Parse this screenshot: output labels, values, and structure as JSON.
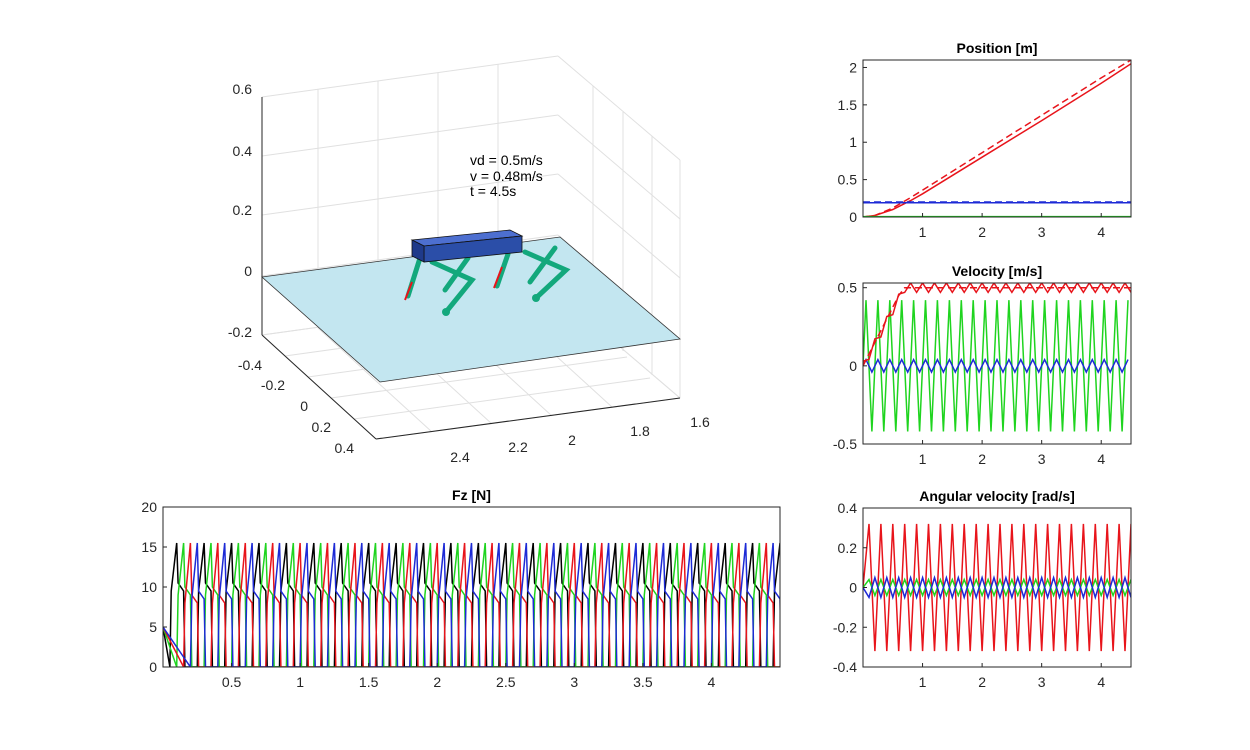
{
  "scene": {
    "z_ticks": [
      "0.6",
      "0.4",
      "0.2",
      "0",
      "-0.2"
    ],
    "y_ticks": [
      "-0.4",
      "-0.2",
      "0",
      "0.2",
      "0.4"
    ],
    "x_ticks": [
      "2.4",
      "2.2",
      "2",
      "1.8",
      "1.6"
    ],
    "annotation": [
      "vd = 0.5m/s",
      "v = 0.48m/s",
      "t = 4.5s"
    ],
    "colors": {
      "ground": "#c3e6f0",
      "body": "#2b4ea8",
      "legs": "#13a87c",
      "force": "#e8141b"
    }
  },
  "chart_data": [
    {
      "id": "position",
      "type": "line",
      "title": "Position [m]",
      "xlim": [
        0,
        4.5
      ],
      "ylim": [
        0,
        2.1
      ],
      "xticks": [
        1,
        2,
        3,
        4
      ],
      "xtick_labels": [
        "1",
        "2",
        "3",
        "4"
      ],
      "yticks": [
        0,
        0.5,
        1,
        1.5,
        2
      ],
      "ytick_labels": [
        "0",
        "0.5",
        "1",
        "1.5",
        "2"
      ],
      "series": [
        {
          "color": "#e8141b",
          "style": "dashed",
          "x": [
            0,
            0.2,
            0.5,
            0.8,
            1,
            2,
            3,
            4,
            4.5
          ],
          "y": [
            0,
            0.02,
            0.12,
            0.26,
            0.36,
            0.86,
            1.36,
            1.86,
            2.1
          ]
        },
        {
          "color": "#e8141b",
          "style": "solid",
          "x": [
            0,
            0.2,
            0.5,
            0.8,
            1,
            2,
            3,
            4,
            4.5
          ],
          "y": [
            0,
            0.02,
            0.1,
            0.22,
            0.31,
            0.8,
            1.29,
            1.79,
            2.05
          ]
        },
        {
          "color": "#1d2ad6",
          "style": "dashed",
          "x": [
            0,
            4.5
          ],
          "y": [
            0.2,
            0.2
          ]
        },
        {
          "color": "#1d2ad6",
          "style": "solid",
          "x": [
            0,
            4.5
          ],
          "y": [
            0.19,
            0.19
          ]
        },
        {
          "color": "#1fd41f",
          "style": "dashed",
          "x": [
            0,
            4.5
          ],
          "y": [
            0,
            0
          ]
        },
        {
          "color": "#1fd41f",
          "style": "solid",
          "x": [
            0,
            4.5
          ],
          "y": [
            0.005,
            0.005
          ]
        }
      ]
    },
    {
      "id": "velocity",
      "type": "line",
      "title": "Velocity [m/s]",
      "xlim": [
        0,
        4.5
      ],
      "ylim": [
        -0.5,
        0.53
      ],
      "xticks": [
        1,
        2,
        3,
        4
      ],
      "xtick_labels": [
        "1",
        "2",
        "3",
        "4"
      ],
      "yticks": [
        -0.5,
        0,
        0.5
      ],
      "ytick_labels": [
        "-0.5",
        "0",
        "0.5"
      ],
      "series": [
        {
          "color": "#1fd41f",
          "style": "solid",
          "osc": {
            "amp": 0.42,
            "period": 0.2,
            "start": 0.05,
            "base": 0
          }
        },
        {
          "color": "#1d2ad6",
          "style": "solid",
          "osc": {
            "amp": 0.04,
            "period": 0.2,
            "start": 0.05,
            "base": 0
          }
        },
        {
          "color": "#e8141b",
          "style": "dashed",
          "x": [
            0,
            0.2,
            0.4,
            0.6,
            0.7,
            4.5
          ],
          "y": [
            0,
            0.15,
            0.3,
            0.45,
            0.5,
            0.5
          ]
        },
        {
          "color": "#e8141b",
          "style": "solid",
          "osc": {
            "amp": 0.03,
            "period": 0.2,
            "start": 0,
            "base": 0.5,
            "ramp": 0.7
          }
        }
      ]
    },
    {
      "id": "angular",
      "type": "line",
      "title": "Angular velocity [rad/s]",
      "xlim": [
        0,
        4.5
      ],
      "ylim": [
        -0.4,
        0.4
      ],
      "xticks": [
        1,
        2,
        3,
        4
      ],
      "xtick_labels": [
        "1",
        "2",
        "3",
        "4"
      ],
      "yticks": [
        -0.4,
        -0.2,
        0,
        0.2,
        0.4
      ],
      "ytick_labels": [
        "-0.4",
        "-0.2",
        "0",
        "0.2",
        "0.4"
      ],
      "series": [
        {
          "color": "#e8141b",
          "style": "solid",
          "osc": {
            "amp": 0.32,
            "period": 0.2,
            "start": 0.1,
            "base": 0
          }
        },
        {
          "color": "#1fd41f",
          "style": "solid",
          "osc": {
            "amp": 0.04,
            "period": 0.2,
            "start": 0.1,
            "base": 0
          }
        },
        {
          "color": "#1d2ad6",
          "style": "solid",
          "osc": {
            "amp": 0.05,
            "period": 0.2,
            "start": 0.1,
            "base": 0,
            "phase": 0.5
          }
        }
      ]
    },
    {
      "id": "fz",
      "type": "line",
      "title": "Fz [N]",
      "xlim": [
        0,
        4.5
      ],
      "ylim": [
        0,
        20
      ],
      "xticks": [
        0.5,
        1,
        1.5,
        2,
        2.5,
        3,
        3.5,
        4
      ],
      "xtick_labels": [
        "0.5",
        "1",
        "1.5",
        "2",
        "2.5",
        "3",
        "3.5",
        "4"
      ],
      "yticks": [
        0,
        5,
        10,
        15,
        20
      ],
      "ytick_labels": [
        "0",
        "5",
        "10",
        "15",
        "20"
      ],
      "series": [
        {
          "color": "#000000",
          "style": "solid",
          "gait": {
            "period": 0.2,
            "offset": 0.0,
            "peak": 15.5,
            "floor": 9.5
          }
        },
        {
          "color": "#1fd41f",
          "style": "solid",
          "gait": {
            "period": 0.2,
            "offset": 0.05,
            "peak": 15.5,
            "floor": 9
          }
        },
        {
          "color": "#e8141b",
          "style": "solid",
          "gait": {
            "period": 0.2,
            "offset": 0.1,
            "peak": 15.5,
            "floor": 8
          }
        },
        {
          "color": "#1d2ad6",
          "style": "solid",
          "gait": {
            "period": 0.2,
            "offset": 0.15,
            "peak": 15.5,
            "floor": 8.5
          }
        }
      ]
    }
  ]
}
